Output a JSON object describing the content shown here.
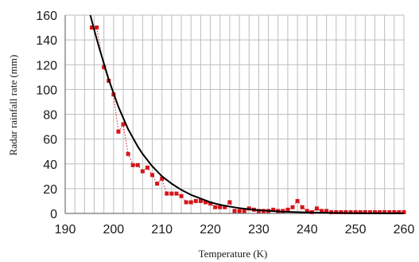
{
  "chart_data": {
    "type": "scatter",
    "title": "",
    "xlabel": "Temperature (K)",
    "ylabel": "Radar rainfall rate (mm)",
    "xlim": [
      190,
      260
    ],
    "ylim": [
      0,
      160
    ],
    "x_ticks": [
      190,
      200,
      210,
      220,
      230,
      240,
      250,
      260
    ],
    "y_ticks": [
      0,
      20,
      40,
      60,
      80,
      100,
      120,
      140,
      160
    ],
    "x_tick_labels": [
      "190",
      "200",
      "210",
      "220",
      "230",
      "240",
      "250",
      "260"
    ],
    "y_tick_labels": [
      "0",
      "20",
      "40",
      "60",
      "80",
      "100",
      "120",
      "140",
      "160"
    ],
    "grid": true,
    "series": [
      {
        "kind": "scatter-connected",
        "color": "#d4161a",
        "line_style": "dotted",
        "x": [
          195.5,
          196.5,
          198,
          199,
          200,
          201,
          202,
          203,
          204,
          205,
          206,
          207,
          208,
          209,
          210,
          211,
          212,
          213,
          214,
          215,
          216,
          217,
          218,
          219,
          220,
          221,
          222,
          223,
          224,
          225,
          226,
          227,
          228,
          229,
          230,
          231,
          232,
          233,
          234,
          235,
          236,
          237,
          238,
          239,
          240,
          241,
          242,
          243,
          244,
          245,
          246,
          247,
          248,
          249,
          250,
          251,
          252,
          253,
          254,
          255,
          256,
          257,
          258,
          259,
          260
        ],
        "y": [
          150,
          150,
          118,
          107,
          96,
          66,
          72,
          48,
          39,
          39,
          34,
          37,
          31,
          24,
          28,
          16,
          16,
          16,
          14,
          9,
          9,
          10,
          10,
          9,
          8,
          5,
          5,
          5,
          9,
          2,
          2,
          2,
          4,
          3,
          2,
          2,
          2,
          3,
          2,
          2,
          3,
          5,
          10,
          5,
          2,
          1,
          4,
          2,
          2,
          1,
          1,
          1,
          1,
          1,
          1,
          1,
          1,
          1,
          1,
          1,
          1,
          1,
          1,
          1,
          1
        ]
      },
      {
        "kind": "fit-curve",
        "color": "#000000",
        "x": [
          195.2,
          196,
          197,
          198,
          199,
          200,
          201,
          202,
          203,
          204,
          205,
          206,
          207,
          208,
          209,
          210,
          212,
          214,
          216,
          218,
          220,
          222,
          224,
          226,
          228,
          230,
          235,
          240,
          245,
          250,
          255,
          260
        ],
        "y": [
          160,
          148,
          134,
          121,
          108,
          97,
          86,
          77,
          68,
          61,
          54,
          48,
          43,
          38,
          34,
          30,
          24,
          19,
          15,
          12,
          9,
          7,
          5.5,
          4.3,
          3.4,
          2.6,
          1.4,
          0.8,
          0.4,
          0.2,
          0.1,
          0.05
        ]
      }
    ]
  }
}
